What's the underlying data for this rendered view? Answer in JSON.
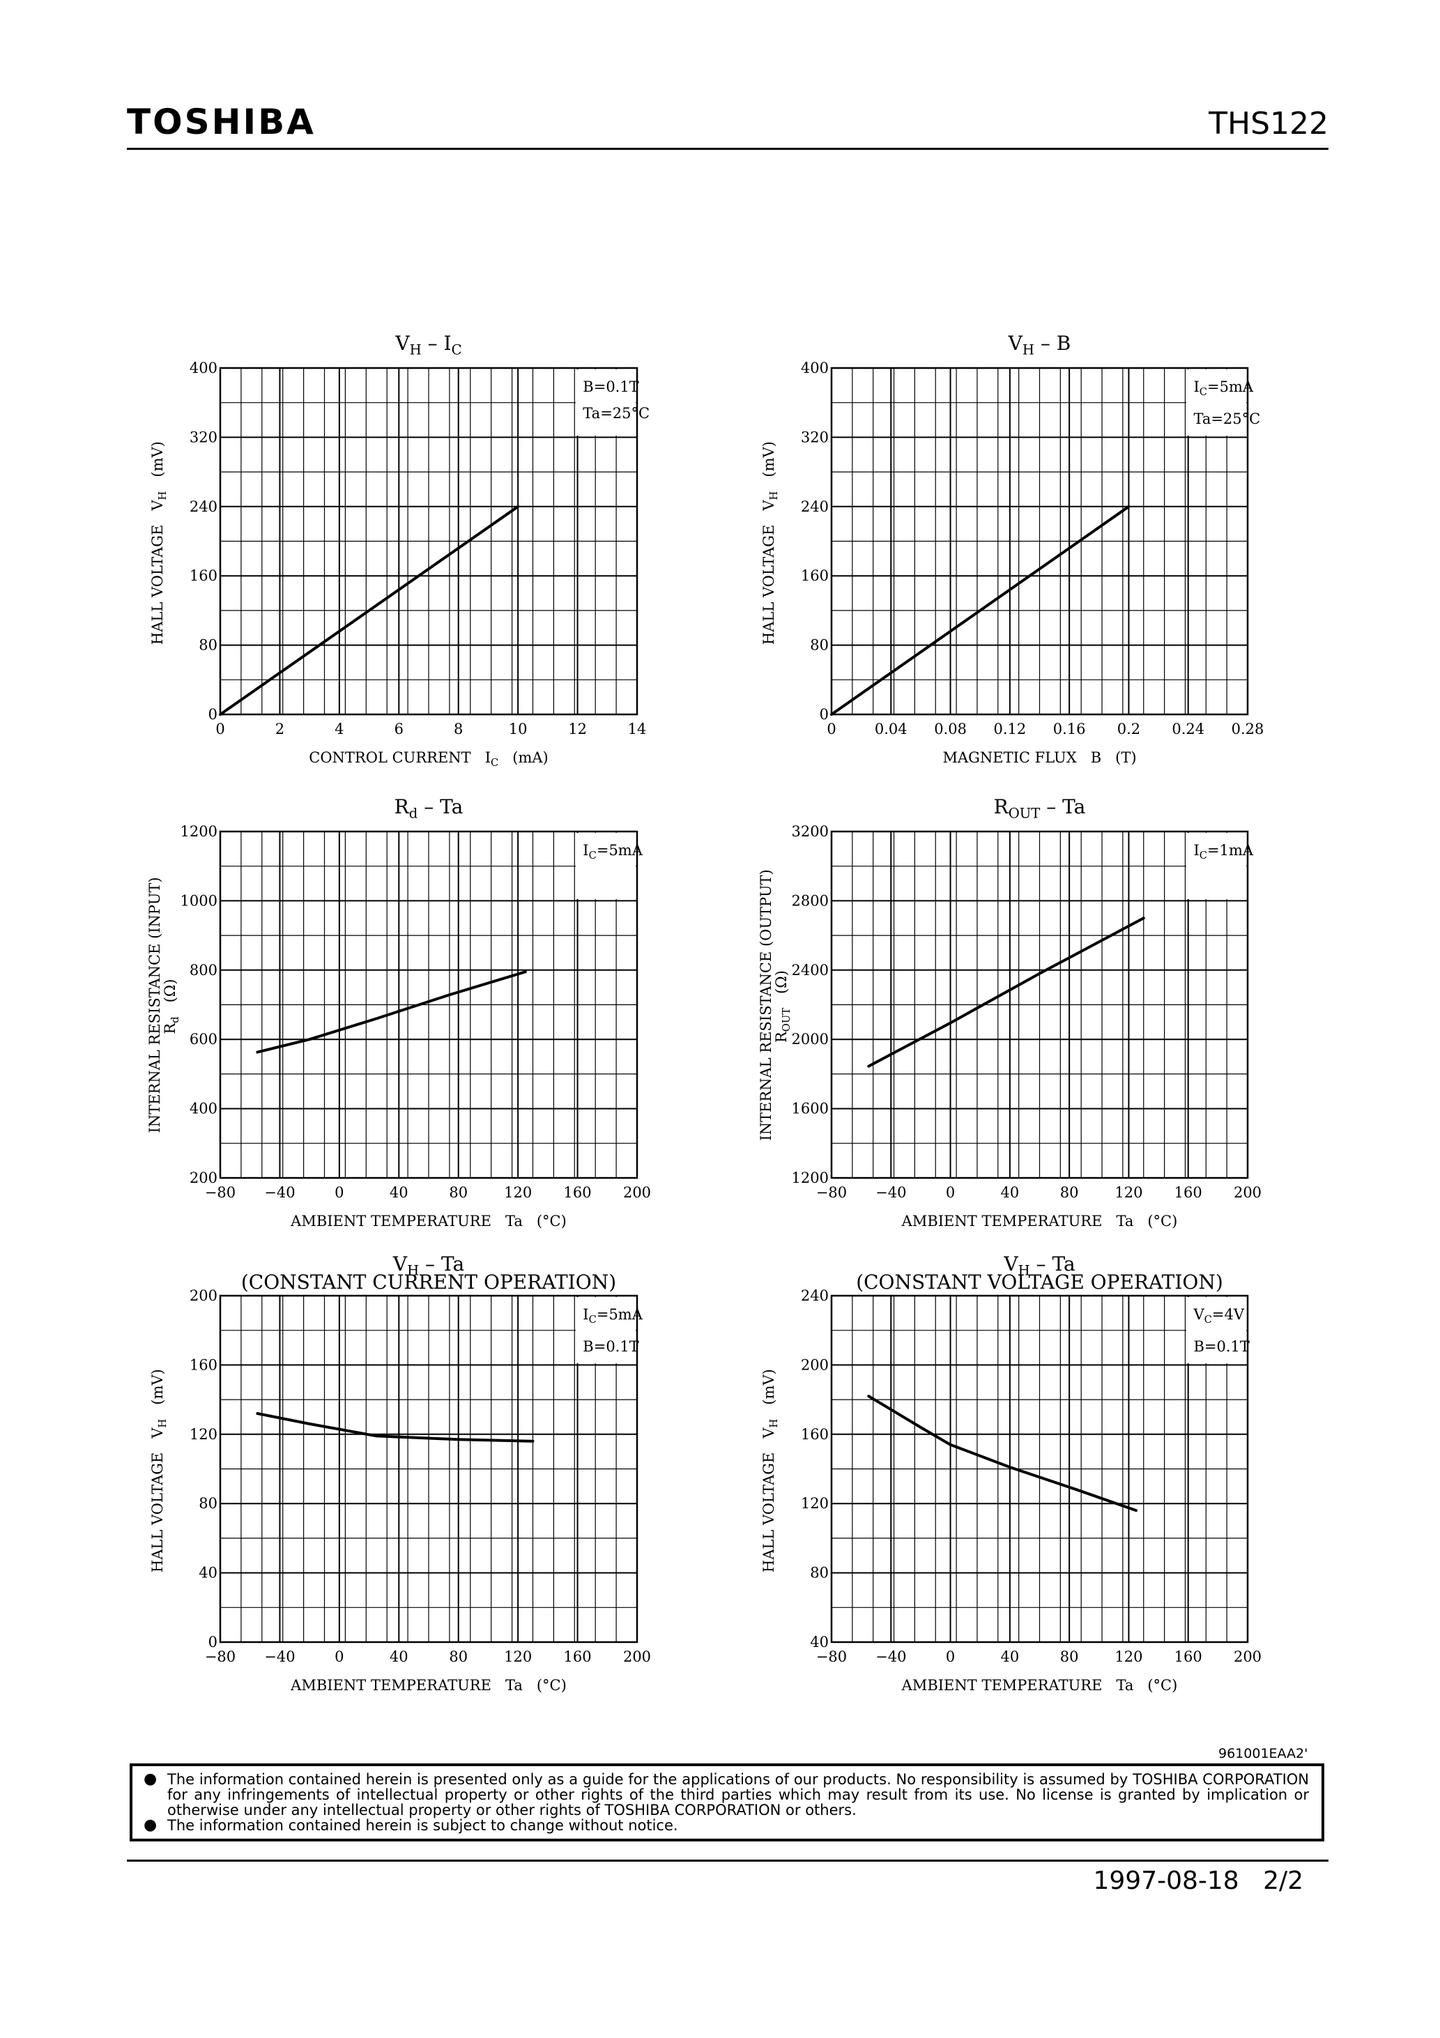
{
  "header": {
    "brand": "TOSHIBA",
    "part_number": "THS122"
  },
  "chart_data": [
    {
      "type": "line",
      "title": "V_H – I_C",
      "title_main": "V",
      "title_sub": "H",
      "title_rest": " – I",
      "title_sub2": "C",
      "xlabel": "CONTROL CURRENT  I_C  (mA)",
      "ylabel": "HALL VOLTAGE  V_H  (mV)",
      "xlim": [
        0,
        14
      ],
      "ylim": [
        0,
        400
      ],
      "xticks": [
        0,
        2,
        4,
        6,
        8,
        10,
        12,
        14
      ],
      "xtick_labels": [
        "0",
        "2",
        "4",
        "6",
        "8",
        "10",
        "12",
        "14"
      ],
      "yticks": [
        0,
        80,
        160,
        240,
        320,
        400
      ],
      "ytick_labels": [
        "0",
        "80",
        "160",
        "240",
        "320",
        "400"
      ],
      "x_minor": 20,
      "y_minor": 10,
      "legend": [
        "B=0.1T",
        "Ta=25°C"
      ],
      "series": [
        {
          "x": [
            0,
            10
          ],
          "y": [
            0,
            240
          ]
        }
      ]
    },
    {
      "type": "line",
      "title": "V_H – B",
      "xlabel": "MAGNETIC FLUX  B  (T)",
      "ylabel": "HALL VOLTAGE  V_H  (mV)",
      "xlim": [
        0,
        0.28
      ],
      "ylim": [
        0,
        400
      ],
      "xticks": [
        0,
        0.04,
        0.08,
        0.12,
        0.16,
        0.2,
        0.24,
        0.28
      ],
      "xtick_labels": [
        "0",
        "0.04",
        "0.08",
        "0.12",
        "0.16",
        "0.2",
        "0.24",
        "0.28"
      ],
      "yticks": [
        0,
        80,
        160,
        240,
        320,
        400
      ],
      "ytick_labels": [
        "0",
        "80",
        "160",
        "240",
        "320",
        "400"
      ],
      "x_minor": 20,
      "y_minor": 10,
      "legend": [
        "I_C=5mA",
        "Ta=25°C"
      ],
      "series": [
        {
          "x": [
            0,
            0.2
          ],
          "y": [
            0,
            240
          ]
        }
      ]
    },
    {
      "type": "line",
      "title": "R_d – Ta",
      "xlabel": "AMBIENT TEMPERATURE  Ta  (°C)",
      "ylabel": "INTERNAL RESISTANCE (INPUT)",
      "ylabel2": "R_d  (Ω)",
      "xlim": [
        -80,
        200
      ],
      "ylim": [
        200,
        1200
      ],
      "xticks": [
        -80,
        -40,
        0,
        40,
        80,
        120,
        160,
        200
      ],
      "xtick_labels": [
        "−80",
        "−40",
        "0",
        "40",
        "80",
        "120",
        "160",
        "200"
      ],
      "yticks": [
        200,
        400,
        600,
        800,
        1000,
        1200
      ],
      "ytick_labels": [
        "200",
        "400",
        "600",
        "800",
        "1000",
        "1200"
      ],
      "x_minor": 20,
      "y_minor": 10,
      "legend": [
        "I_C=5mA"
      ],
      "series": [
        {
          "x": [
            -55,
            -20,
            25,
            75,
            125
          ],
          "y": [
            563,
            600,
            660,
            730,
            795
          ]
        }
      ]
    },
    {
      "type": "line",
      "title": "R_OUT – Ta",
      "xlabel": "AMBIENT TEMPERATURE  Ta  (°C)",
      "ylabel": "INTERNAL RESISTANCE (OUTPUT)",
      "ylabel2": "R_OUT  (Ω)",
      "xlim": [
        -80,
        200
      ],
      "ylim": [
        1200,
        3200
      ],
      "xticks": [
        -80,
        -40,
        0,
        40,
        80,
        120,
        160,
        200
      ],
      "xtick_labels": [
        "−80",
        "−40",
        "0",
        "40",
        "80",
        "120",
        "160",
        "200"
      ],
      "yticks": [
        1200,
        1600,
        2000,
        2400,
        2800,
        3200
      ],
      "ytick_labels": [
        "1200",
        "1600",
        "2000",
        "2400",
        "2800",
        "3200"
      ],
      "x_minor": 20,
      "y_minor": 10,
      "legend": [
        "I_C=1mA"
      ],
      "series": [
        {
          "x": [
            -55,
            0,
            60,
            130
          ],
          "y": [
            1845,
            2095,
            2380,
            2700
          ]
        }
      ]
    },
    {
      "type": "line",
      "title": "V_H – Ta",
      "subtitle": "(CONSTANT CURRENT OPERATION)",
      "xlabel": "AMBIENT TEMPERATURE  Ta  (°C)",
      "ylabel": "HALL VOLTAGE  V_H  (mV)",
      "xlim": [
        -80,
        200
      ],
      "ylim": [
        0,
        200
      ],
      "xticks": [
        -80,
        -40,
        0,
        40,
        80,
        120,
        160,
        200
      ],
      "xtick_labels": [
        "−80",
        "−40",
        "0",
        "40",
        "80",
        "120",
        "160",
        "200"
      ],
      "yticks": [
        0,
        40,
        80,
        120,
        160,
        200
      ],
      "ytick_labels": [
        "0",
        "40",
        "80",
        "120",
        "160",
        "200"
      ],
      "x_minor": 20,
      "y_minor": 10,
      "legend": [
        "I_C=5mA",
        "B=0.1T"
      ],
      "series": [
        {
          "x": [
            -55,
            -20,
            25,
            80,
            130
          ],
          "y": [
            132,
            126,
            119,
            117,
            116
          ]
        }
      ]
    },
    {
      "type": "line",
      "title": "V_H – Ta",
      "subtitle": "(CONSTANT VOLTAGE OPERATION)",
      "xlabel": "AMBIENT TEMPERATURE  Ta  (°C)",
      "ylabel": "HALL VOLTAGE  V_H  (mV)",
      "xlim": [
        -80,
        200
      ],
      "ylim": [
        40,
        240
      ],
      "xticks": [
        -80,
        -40,
        0,
        40,
        80,
        120,
        160,
        200
      ],
      "xtick_labels": [
        "−80",
        "−40",
        "0",
        "40",
        "80",
        "120",
        "160",
        "200"
      ],
      "yticks": [
        40,
        80,
        120,
        160,
        200,
        240
      ],
      "ytick_labels": [
        "40",
        "80",
        "120",
        "160",
        "200",
        "240"
      ],
      "x_minor": 20,
      "y_minor": 10,
      "legend": [
        "V_C=4V",
        "B=0.1T"
      ],
      "series": [
        {
          "x": [
            -55,
            -20,
            0,
            40,
            85,
            125
          ],
          "y": [
            182,
            164,
            154,
            141,
            128,
            116
          ]
        }
      ]
    }
  ],
  "footer": {
    "code": "961001EAA2'",
    "notice_1": "The information contained herein is presented only as a guide for the applications of our products. No responsibility is assumed by TOSHIBA CORPORATION for any infringements of intellectual property or other rights of the third parties which may result from its use. No license is granted by implication or otherwise under any intellectual property or other rights of TOSHIBA CORPORATION or others.",
    "notice_2": "The information contained herein is subject to change without notice.",
    "date": "1997-08-18",
    "page": "2/2"
  }
}
